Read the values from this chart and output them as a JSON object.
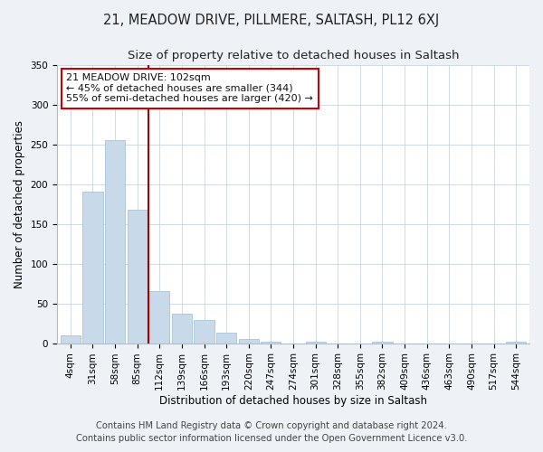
{
  "title": "21, MEADOW DRIVE, PILLMERE, SALTASH, PL12 6XJ",
  "subtitle": "Size of property relative to detached houses in Saltash",
  "xlabel": "Distribution of detached houses by size in Saltash",
  "ylabel": "Number of detached properties",
  "bar_labels": [
    "4sqm",
    "31sqm",
    "58sqm",
    "85sqm",
    "112sqm",
    "139sqm",
    "166sqm",
    "193sqm",
    "220sqm",
    "247sqm",
    "274sqm",
    "301sqm",
    "328sqm",
    "355sqm",
    "382sqm",
    "409sqm",
    "436sqm",
    "463sqm",
    "490sqm",
    "517sqm",
    "544sqm"
  ],
  "bar_values": [
    10,
    191,
    256,
    168,
    65,
    37,
    29,
    13,
    5,
    2,
    0,
    2,
    0,
    0,
    2,
    0,
    0,
    0,
    0,
    0,
    2
  ],
  "bar_color": "#c8d9ea",
  "bar_edge_color": "#a8c4d8",
  "vline_color": "#aa0000",
  "ylim": [
    0,
    350
  ],
  "yticks": [
    0,
    50,
    100,
    150,
    200,
    250,
    300,
    350
  ],
  "annotation_text": "21 MEADOW DRIVE: 102sqm\n← 45% of detached houses are smaller (344)\n55% of semi-detached houses are larger (420) →",
  "annotation_box_color": "#ffffff",
  "annotation_box_edge": "#cc0000",
  "footer_text": "Contains HM Land Registry data © Crown copyright and database right 2024.\nContains public sector information licensed under the Open Government Licence v3.0.",
  "background_color": "#eef2f7",
  "plot_background": "#ffffff",
  "grid_color": "#c8d4e0",
  "title_fontsize": 10.5,
  "subtitle_fontsize": 9.5,
  "axis_label_fontsize": 8.5,
  "tick_fontsize": 7.5,
  "footer_fontsize": 7.2,
  "ann_fontsize": 8.0
}
